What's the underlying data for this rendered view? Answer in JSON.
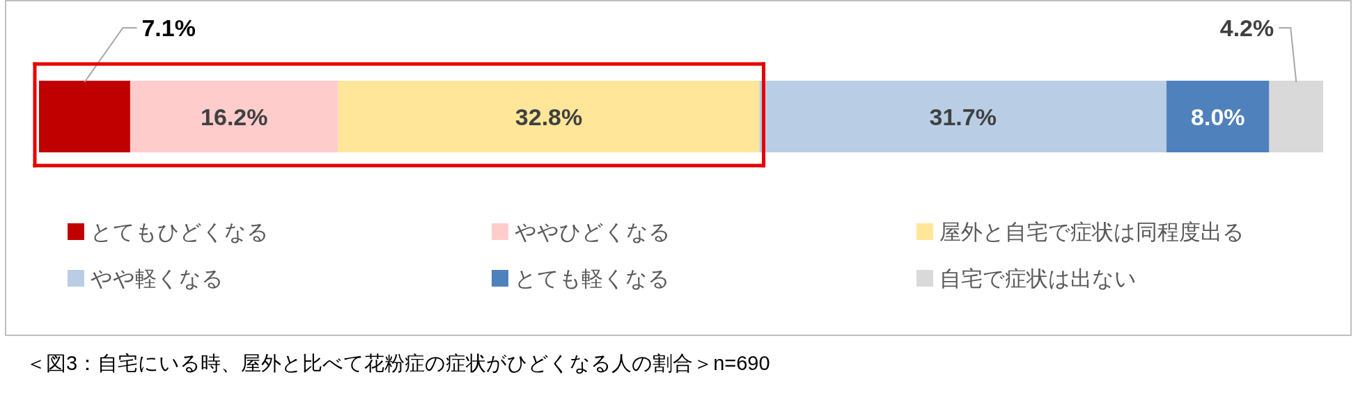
{
  "chart_data": {
    "type": "bar",
    "stacked": true,
    "orientation": "horizontal",
    "categories": [
      null
    ],
    "xlim": [
      0,
      100
    ],
    "legend": "bottom",
    "ref_lines": [
      {
        "axis": "x",
        "value": 56.1,
        "color": "#e60000"
      }
    ],
    "series": [
      {
        "name": "とてもひどくなる",
        "color": "#c00000",
        "values": [
          7.1
        ],
        "value_labels": [
          "7.1%"
        ]
      },
      {
        "name": "ややひどくなる",
        "color": "#ffcccc",
        "values": [
          16.2
        ],
        "value_labels": [
          "16.2%"
        ]
      },
      {
        "name": "屋外と自宅で症状は同程度出る",
        "color": "#ffe699",
        "values": [
          32.8
        ],
        "value_labels": [
          "32.8%"
        ]
      },
      {
        "name": "やや軽くなる",
        "color": "#b9cde5",
        "values": [
          31.7
        ],
        "value_labels": [
          "31.7%"
        ]
      },
      {
        "name": "とても軽くなる",
        "color": "#4f81bd",
        "values": [
          8.0
        ],
        "value_labels": [
          "8.0%"
        ]
      },
      {
        "name": "自宅で症状は出ない",
        "color": "#d9d9d9",
        "values": [
          4.2
        ],
        "value_labels": [
          "4.2%"
        ]
      }
    ],
    "annotations": [
      "＜図3：自宅にいる時、屋外と比べて花粉症の症状がひどくなる人の割合＞n=690"
    ]
  }
}
